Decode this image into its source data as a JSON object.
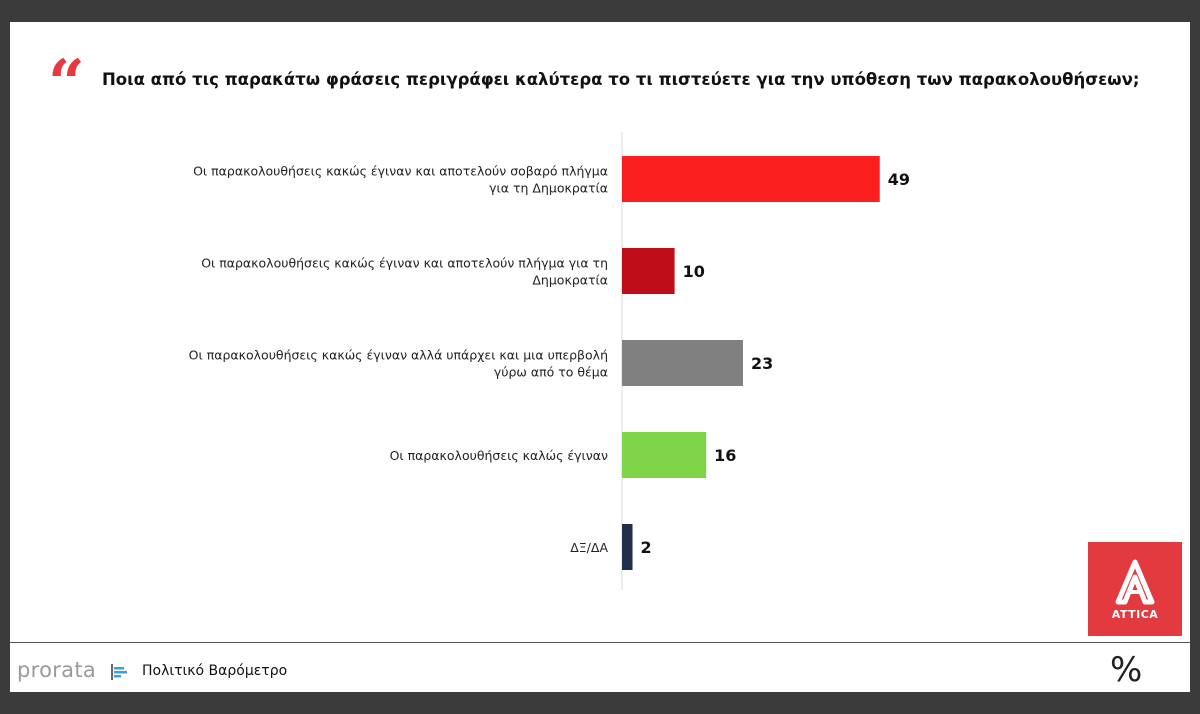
{
  "question": "Ποια από τις παρακάτω φράσεις περιγράφει καλύτερα το τι πιστεύετε για την υπόθεση των παρακολουθήσεων;",
  "quote_mark": "“",
  "chart_data": {
    "type": "bar",
    "orientation": "horizontal",
    "categories": [
      [
        "Οι παρακολουθήσεις κακώς έγιναν και αποτελούν σοβαρό πλήγμα",
        "για τη Δημοκρατία"
      ],
      [
        "Οι παρακολουθήσεις κακώς έγιναν και αποτελούν πλήγμα για τη",
        "Δημοκρατία"
      ],
      [
        "Οι παρακολουθήσεις κακώς έγιναν αλλά υπάρχει και μια υπερβολή",
        "γύρω από το θέμα"
      ],
      [
        "Οι παρακολουθήσεις καλώς έγιναν"
      ],
      [
        "ΔΞ/ΔΑ"
      ]
    ],
    "values": [
      49,
      10,
      23,
      16,
      2
    ],
    "colors": [
      "#fb1f1f",
      "#c00d1a",
      "#808080",
      "#7ed448",
      "#1f2e49"
    ],
    "xlim": [
      0,
      100
    ],
    "grid": false,
    "legend": "none"
  },
  "footer": {
    "brand": "prorata",
    "label": "Πολιτικό Βαρόμετρο",
    "logo_text": "ATTICA",
    "percent_symbol": "%"
  }
}
